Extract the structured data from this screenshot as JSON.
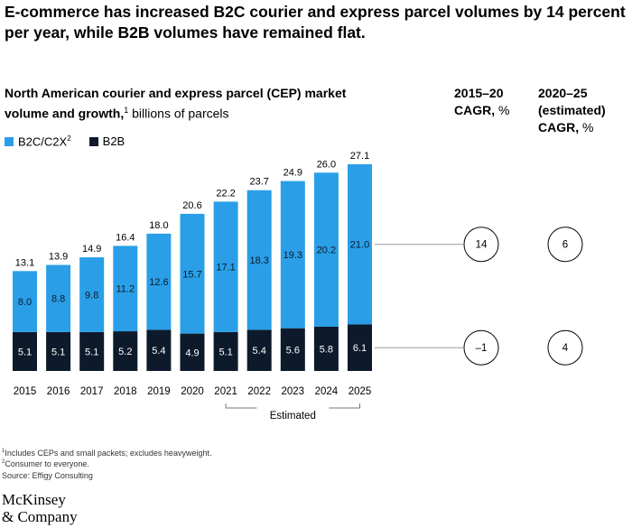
{
  "headline": "E-commerce has increased B2C courier and express parcel volumes by 14 percent per year, while B2B volumes have remained flat.",
  "subtitle": {
    "bold": "North American courier and express parcel (CEP) market volume and growth,",
    "sup": "1",
    "normal": " billions of parcels"
  },
  "cagr_headers": [
    {
      "bold": "2015–20 CAGR,",
      "unit": " %"
    },
    {
      "bold": "2020–25 (estimated) CAGR,",
      "unit": " %"
    }
  ],
  "legend": {
    "b2c_label": "B2C/C2X",
    "b2c_sup": "2",
    "b2b_label": "B2B"
  },
  "colors": {
    "b2c": "#2a9fe8",
    "b2b": "#0d1a2b",
    "axis": "#555555"
  },
  "chart_data": {
    "type": "bar",
    "stacked": true,
    "categories": [
      "2015",
      "2016",
      "2017",
      "2018",
      "2019",
      "2020",
      "2021",
      "2022",
      "2023",
      "2024",
      "2025"
    ],
    "series": [
      {
        "name": "B2B",
        "values": [
          5.1,
          5.1,
          5.1,
          5.2,
          5.4,
          4.9,
          5.1,
          5.4,
          5.6,
          5.8,
          6.1
        ]
      },
      {
        "name": "B2C/C2X",
        "values": [
          8.0,
          8.8,
          9.8,
          11.2,
          12.6,
          15.7,
          17.1,
          18.3,
          19.3,
          20.2,
          21.0
        ]
      }
    ],
    "totals": [
      13.1,
      13.9,
      14.9,
      16.4,
      18.0,
      20.6,
      22.2,
      23.7,
      24.9,
      26.0,
      27.1
    ],
    "estimated_label": "Estimated",
    "estimated_range": [
      "2021",
      "2025"
    ],
    "cagr": {
      "B2C/C2X": {
        "2015-20": "14",
        "2020-25": "6"
      },
      "B2B": {
        "2015-20": "–1",
        "2020-25": "4"
      }
    }
  },
  "footnotes": [
    {
      "sup": "1",
      "text": "Includes CEPs and small packets; excludes heavyweight."
    },
    {
      "sup": "2",
      "text": "Consumer to everyone."
    },
    {
      "sup": "",
      "text": " Source: Effigy Consulting"
    }
  ],
  "logo": {
    "line1": "McKinsey",
    "line2": "& Company"
  }
}
